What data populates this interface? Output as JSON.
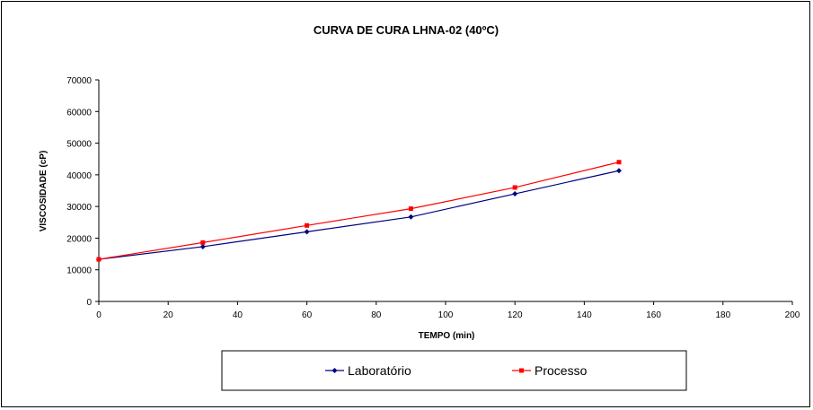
{
  "chart_data": {
    "type": "line",
    "title": "CURVA DE CURA LHNA-02 (40ºC)",
    "xlabel": "TEMPO (min)",
    "ylabel": "VISCOSIDADE (cP)",
    "xlim": [
      0,
      200
    ],
    "ylim": [
      0,
      70000
    ],
    "x_ticks": [
      "0",
      "20",
      "40",
      "60",
      "80",
      "100",
      "120",
      "140",
      "160",
      "180",
      "200"
    ],
    "y_ticks": [
      "0",
      "10000",
      "20000",
      "30000",
      "40000",
      "50000",
      "60000",
      "70000"
    ],
    "grid": false,
    "legend_position": "bottom",
    "series": [
      {
        "name": "Laboratório",
        "color": "#000080",
        "marker": "diamond",
        "x": [
          0,
          30,
          60,
          90,
          120,
          150
        ],
        "y": [
          13300,
          17300,
          22000,
          26700,
          34000,
          41300
        ]
      },
      {
        "name": "Processo",
        "color": "#FF0000",
        "marker": "square",
        "x": [
          0,
          30,
          60,
          90,
          120,
          150
        ],
        "y": [
          13300,
          18600,
          24000,
          29300,
          36000,
          44000
        ]
      }
    ]
  }
}
